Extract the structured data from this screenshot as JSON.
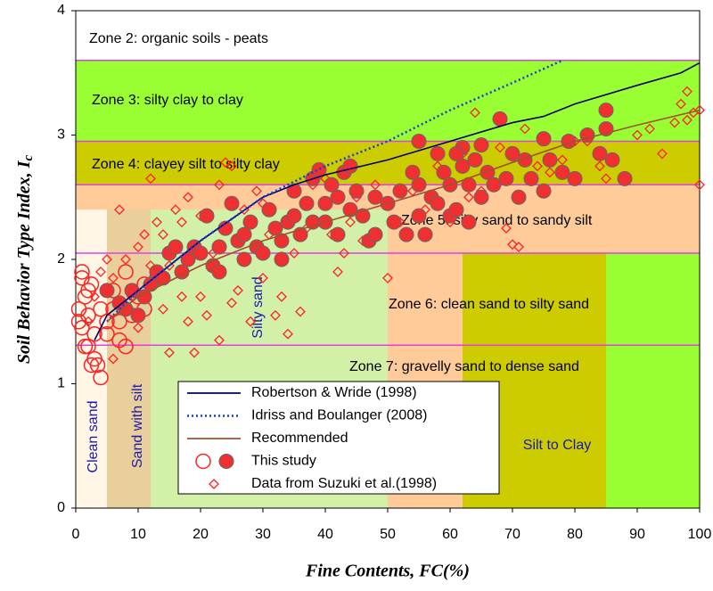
{
  "chart_data": {
    "type": "scatter",
    "xlabel": "Fine Contents, FC(%)",
    "ylabel": {
      "text": "Soil Behavior Type Index, I",
      "subscript": "c"
    },
    "xlim": [
      0,
      100
    ],
    "xticks": [
      0,
      10,
      20,
      30,
      40,
      50,
      60,
      70,
      80,
      90,
      100
    ],
    "ylim": [
      0,
      4
    ],
    "yticks": [
      0,
      1,
      2,
      3,
      4
    ],
    "regions": [
      {
        "x": [
          0,
          100
        ],
        "y": [
          3.6,
          4
        ],
        "color": "#ffffff"
      },
      {
        "x": [
          0,
          100
        ],
        "y": [
          2.95,
          3.6
        ],
        "color": "#99ff33"
      },
      {
        "x": [
          0,
          100
        ],
        "y": [
          2.6,
          2.95
        ],
        "color": "#cccc00"
      },
      {
        "x": [
          0,
          100
        ],
        "y": [
          2.05,
          2.6
        ],
        "color": "#ffcc99"
      },
      {
        "x": [
          0,
          62
        ],
        "y": [
          0,
          2.05
        ],
        "color": "#ffcc99"
      },
      {
        "x": [
          62,
          85
        ],
        "y": [
          0,
          2.05
        ],
        "color": "#cccc00"
      },
      {
        "x": [
          85,
          100
        ],
        "y": [
          0,
          2.05
        ],
        "color": "#99ff33"
      },
      {
        "x": [
          0,
          5
        ],
        "y": [
          0,
          2.4
        ],
        "color": "#fff6e6"
      },
      {
        "x": [
          5,
          12
        ],
        "y": [
          0,
          2.4
        ],
        "color": "#e8cf9c"
      },
      {
        "x": [
          12,
          50
        ],
        "y": [
          0,
          2.4
        ],
        "color": "#d2f0a8"
      }
    ],
    "zone_lines": {
      "color": "#e040e0",
      "values": [
        3.6,
        2.95,
        2.6,
        2.05,
        1.31
      ]
    },
    "zone_labels": [
      "Zone 2: organic soils - peats",
      "Zone 3: silty clay to clay",
      "Zone 4: clayey silt to silty clay",
      "Zone 5: silty sand to sandy silt",
      "Zone 6: clean sand to silty sand",
      "Zone 7: gravelly sand to dense sand"
    ],
    "region_labels": {
      "color": "#1a1aaa",
      "texts": [
        "Clean  sand",
        "Sand with silt",
        "Silty sand",
        "Silt to Clay"
      ]
    },
    "series": [
      {
        "name": "Robertson & Wride (1998)",
        "kind": "line",
        "dash": "solid",
        "color": "#000066",
        "x": [
          3,
          5,
          10,
          20,
          30,
          35,
          40,
          50,
          60,
          70,
          75,
          80,
          90,
          97,
          100
        ],
        "y": [
          1.35,
          1.55,
          1.75,
          2.15,
          2.5,
          2.6,
          2.68,
          2.8,
          2.95,
          3.1,
          3.15,
          3.25,
          3.4,
          3.5,
          3.58
        ]
      },
      {
        "name": "Idriss and Boulanger (2008)",
        "kind": "line",
        "dash": "dotted",
        "color": "#1a3adc",
        "x": [
          5,
          10,
          20,
          30,
          40,
          50,
          60,
          70,
          78
        ],
        "y": [
          1.5,
          1.75,
          2.15,
          2.5,
          2.75,
          2.95,
          3.2,
          3.42,
          3.6
        ]
      },
      {
        "name": "Recommended",
        "kind": "line",
        "dash": "solid",
        "color": "#a0522d",
        "x": [
          5,
          10,
          20,
          30,
          40,
          50,
          60,
          70,
          80,
          90,
          100
        ],
        "y": [
          1.5,
          1.7,
          1.95,
          2.15,
          2.3,
          2.45,
          2.6,
          2.78,
          2.95,
          3.08,
          3.2
        ]
      },
      {
        "name": "This study",
        "kind": "circles",
        "color": "#ff2020",
        "groups": [
          {
            "fill": "none",
            "x": [
              0.5,
              1,
              1,
              1.5,
              2,
              2,
              2.5,
              3,
              3,
              3.5,
              4,
              1,
              2,
              5,
              6,
              7,
              8,
              9,
              10,
              11,
              2.5,
              1.5,
              0.5,
              4,
              6,
              8,
              11,
              13,
              7,
              5
            ],
            "y": [
              1.6,
              1.45,
              1.85,
              1.7,
              1.3,
              1.55,
              1.15,
              1.4,
              1.2,
              1.15,
              1.05,
              1.9,
              1.75,
              1.5,
              1.6,
              1.5,
              1.3,
              1.55,
              1.7,
              1.8,
              1.8,
              1.3,
              1.5,
              1.6,
              1.75,
              1.9,
              1.6,
              1.85,
              1.35,
              1.4
            ]
          },
          {
            "fill": "#f03030",
            "x": [
              5,
              7,
              8,
              9,
              10,
              11,
              12,
              13,
              14,
              15,
              16,
              17,
              18,
              19,
              20,
              21,
              22,
              23,
              24,
              25,
              26,
              27,
              28,
              29,
              30,
              31,
              32,
              33,
              34,
              35,
              35,
              36,
              37,
              38,
              38,
              39,
              40,
              40,
              41,
              42,
              42,
              43,
              44,
              45,
              46,
              47,
              48,
              50,
              51,
              52,
              53,
              54,
              55,
              55,
              56,
              57,
              58,
              59,
              60,
              60,
              61,
              62,
              62,
              63,
              63,
              64,
              65,
              65,
              66,
              67,
              68,
              69,
              70,
              71,
              72,
              73,
              75,
              75,
              76,
              78,
              79,
              80,
              82,
              84,
              85,
              85,
              86,
              88,
              55,
              58,
              61,
              48,
              44,
              33,
              27,
              23
            ],
            "y": [
              1.75,
              1.65,
              1.6,
              1.75,
              1.55,
              1.7,
              1.8,
              1.9,
              1.85,
              2.05,
              2.1,
              1.9,
              2.0,
              2.1,
              2.05,
              2.35,
              1.95,
              2.1,
              2.25,
              2.45,
              2.15,
              2.0,
              2.3,
              2.1,
              2.05,
              2.4,
              2.25,
              2.15,
              2.3,
              2.55,
              2.35,
              2.2,
              2.45,
              2.65,
              2.3,
              2.72,
              2.45,
              2.3,
              2.6,
              2.5,
              2.2,
              2.7,
              2.4,
              2.55,
              2.35,
              2.15,
              2.5,
              2.45,
              2.3,
              2.55,
              2.2,
              2.7,
              2.95,
              2.6,
              2.2,
              2.5,
              2.85,
              2.7,
              2.35,
              2.6,
              2.4,
              2.75,
              2.9,
              2.6,
              2.3,
              2.8,
              2.5,
              2.92,
              2.7,
              2.6,
              3.13,
              2.65,
              2.85,
              2.5,
              2.8,
              2.65,
              2.97,
              2.55,
              2.8,
              2.7,
              2.95,
              2.65,
              3.0,
              2.85,
              3.2,
              3.05,
              2.8,
              2.65,
              2.35,
              2.45,
              2.85,
              2.2,
              2.75,
              2.0,
              2.2,
              1.9
            ]
          }
        ]
      },
      {
        "name": "Data from Suzuki et al.(1998)",
        "kind": "diamonds",
        "color": "#ff2020",
        "x": [
          2,
          3,
          4,
          5,
          6,
          6,
          7,
          8,
          9,
          10,
          10,
          11,
          12,
          12,
          13,
          14,
          14,
          15,
          15,
          16,
          17,
          17,
          18,
          18,
          19,
          19,
          20,
          20,
          21,
          22,
          23,
          23,
          24,
          25,
          25,
          26,
          27,
          28,
          29,
          30,
          30,
          31,
          32,
          33,
          34,
          35,
          36,
          37,
          38,
          40,
          41,
          42,
          43,
          44,
          45,
          46,
          48,
          50,
          52,
          54,
          56,
          58,
          60,
          62,
          63,
          64,
          65,
          66,
          68,
          69,
          70,
          71,
          72,
          74,
          76,
          78,
          80,
          82,
          84,
          85,
          90,
          92,
          94,
          96,
          97,
          98,
          98,
          99,
          100,
          100
        ],
        "y": [
          1.5,
          1.7,
          1.9,
          2.0,
          1.85,
          1.2,
          2.4,
          2.0,
          1.7,
          2.1,
          1.45,
          2.2,
          1.95,
          2.65,
          2.3,
          1.6,
          2.2,
          1.25,
          1.95,
          2.4,
          1.7,
          2.3,
          2.5,
          1.5,
          1.25,
          2.05,
          2.35,
          1.7,
          1.55,
          2.05,
          1.35,
          2.6,
          2.78,
          2.75,
          1.65,
          1.75,
          2.4,
          1.5,
          2.55,
          1.85,
          2.45,
          2.2,
          1.55,
          1.7,
          1.4,
          2.05,
          1.58,
          2.25,
          2.6,
          2.65,
          2.2,
          1.9,
          2.05,
          2.3,
          2.5,
          2.15,
          2.6,
          1.85,
          2.3,
          2.55,
          2.4,
          2.75,
          2.3,
          2.85,
          2.5,
          3.18,
          2.55,
          2.7,
          2.9,
          2.25,
          2.12,
          2.1,
          3.05,
          2.75,
          2.7,
          2.8,
          2.95,
          2.95,
          2.75,
          2.65,
          3.0,
          3.05,
          2.85,
          3.1,
          3.25,
          3.35,
          3.12,
          3.18,
          2.6,
          3.2
        ]
      }
    ]
  }
}
